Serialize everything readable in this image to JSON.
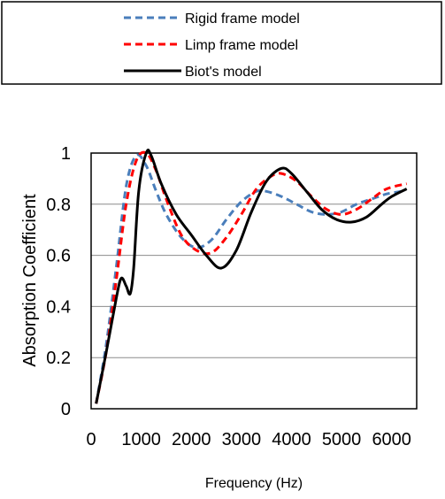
{
  "chart_data": {
    "type": "line",
    "title": "",
    "xlabel": "Frequency (Hz)",
    "ylabel": "Absorption Coefficient",
    "xlim": [
      0,
      6500
    ],
    "ylim": [
      0,
      1
    ],
    "x_ticks": [
      0,
      1000,
      2000,
      3000,
      4000,
      5000,
      6000
    ],
    "x_tick_labels": [
      "0",
      "1000",
      "2000",
      "3000",
      "4000",
      "5000",
      "6000"
    ],
    "y_ticks": [
      0,
      0.2,
      0.4,
      0.6,
      0.8,
      1
    ],
    "y_tick_labels": [
      "0",
      "0.2",
      "0.4",
      "0.6",
      "0.8",
      "1"
    ],
    "grid": "horizontal",
    "legend_position": "top",
    "series": [
      {
        "name": "Rigid frame model",
        "color": "#4a7ebb",
        "dash": "dashed",
        "x": [
          100,
          300,
          500,
          700,
          900,
          1100,
          1300,
          1500,
          1800,
          2100,
          2400,
          2700,
          3000,
          3300,
          3500,
          3800,
          4100,
          4400,
          4700,
          5000,
          5300,
          5600,
          5900,
          6200
        ],
        "y": [
          0.02,
          0.25,
          0.55,
          0.87,
          0.99,
          0.95,
          0.85,
          0.76,
          0.67,
          0.63,
          0.66,
          0.74,
          0.81,
          0.85,
          0.85,
          0.83,
          0.8,
          0.77,
          0.76,
          0.77,
          0.8,
          0.82,
          0.84,
          0.85
        ]
      },
      {
        "name": "Limp frame model",
        "color": "#ff0000",
        "dash": "dashed",
        "x": [
          100,
          300,
          500,
          700,
          900,
          1100,
          1300,
          1500,
          1800,
          2100,
          2400,
          2700,
          3000,
          3300,
          3600,
          3800,
          4100,
          4400,
          4700,
          5000,
          5300,
          5600,
          5900,
          6300
        ],
        "y": [
          0.02,
          0.22,
          0.5,
          0.8,
          0.97,
          1.0,
          0.93,
          0.82,
          0.68,
          0.62,
          0.61,
          0.67,
          0.76,
          0.86,
          0.91,
          0.92,
          0.89,
          0.83,
          0.78,
          0.76,
          0.78,
          0.82,
          0.86,
          0.88
        ]
      },
      {
        "name": "Biot's model",
        "color": "#000000",
        "dash": "solid",
        "x": [
          100,
          300,
          500,
          600,
          700,
          780,
          850,
          950,
          1100,
          1200,
          1400,
          1700,
          2000,
          2300,
          2600,
          2900,
          3200,
          3500,
          3800,
          4000,
          4300,
          4600,
          4900,
          5200,
          5500,
          5800,
          6000,
          6300
        ],
        "y": [
          0.02,
          0.22,
          0.43,
          0.51,
          0.48,
          0.45,
          0.55,
          0.85,
          1.0,
          0.99,
          0.88,
          0.76,
          0.68,
          0.6,
          0.55,
          0.62,
          0.77,
          0.89,
          0.94,
          0.92,
          0.85,
          0.78,
          0.74,
          0.73,
          0.75,
          0.8,
          0.83,
          0.86
        ]
      }
    ]
  }
}
